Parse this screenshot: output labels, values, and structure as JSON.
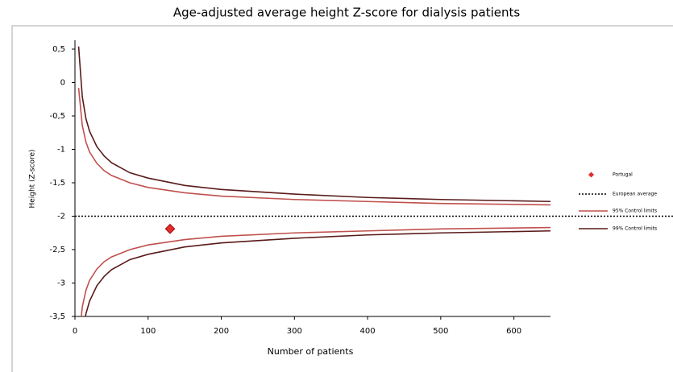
{
  "chart_data": {
    "type": "funnel",
    "title": "Age-adjusted average height Z-score for dialysis patients",
    "x_label": "Number of patients",
    "y_label": "Height (Z-score)",
    "xlim": [
      0,
      650
    ],
    "ylim": [
      -3.5,
      0.5
    ],
    "xticks": [
      0,
      100,
      200,
      300,
      400,
      500,
      600
    ],
    "yticks": [
      {
        "value": 0.5,
        "label": "0,5"
      },
      0,
      {
        "value": -0.5,
        "label": "-0,5"
      },
      -1,
      {
        "value": -1.5,
        "label": "-1,5"
      },
      -2,
      {
        "value": -2.5,
        "label": "-2,5"
      },
      -3,
      {
        "value": -3.5,
        "label": "-3,5"
      }
    ],
    "points": [
      {
        "name": "Portugal",
        "x": 130,
        "y": -2.19,
        "color": "#e03030"
      }
    ],
    "average": {
      "name": "European average",
      "value": -2,
      "color": "#000000"
    },
    "x": [
      5,
      10,
      15,
      20,
      30,
      40,
      50,
      75,
      100,
      150,
      200,
      300,
      400,
      500,
      650
    ],
    "limits": [
      {
        "name": "95% Control limits",
        "color": "#c0504d",
        "upper": [
          -0.08,
          -0.64,
          -0.89,
          -1.04,
          -1.21,
          -1.32,
          -1.39,
          -1.5,
          -1.57,
          -1.65,
          -1.7,
          -1.75,
          -1.78,
          -1.81,
          -1.83
        ],
        "lower": [
          -3.92,
          -3.36,
          -3.11,
          -2.96,
          -2.79,
          -2.68,
          -2.61,
          -2.5,
          -2.43,
          -2.35,
          -2.3,
          -2.25,
          -2.22,
          -2.19,
          -2.17
        ]
      },
      {
        "name": "99% Control limits",
        "color": "#5a1a1a",
        "upper": [
          0.54,
          -0.21,
          -0.54,
          -0.73,
          -0.96,
          -1.1,
          -1.2,
          -1.35,
          -1.43,
          -1.54,
          -1.6,
          -1.67,
          -1.72,
          -1.75,
          -1.78
        ],
        "lower": [
          -4.54,
          -3.79,
          -3.46,
          -3.27,
          -3.04,
          -2.9,
          -2.8,
          -2.65,
          -2.57,
          -2.46,
          -2.4,
          -2.33,
          -2.28,
          -2.25,
          -2.22
        ]
      }
    ]
  }
}
